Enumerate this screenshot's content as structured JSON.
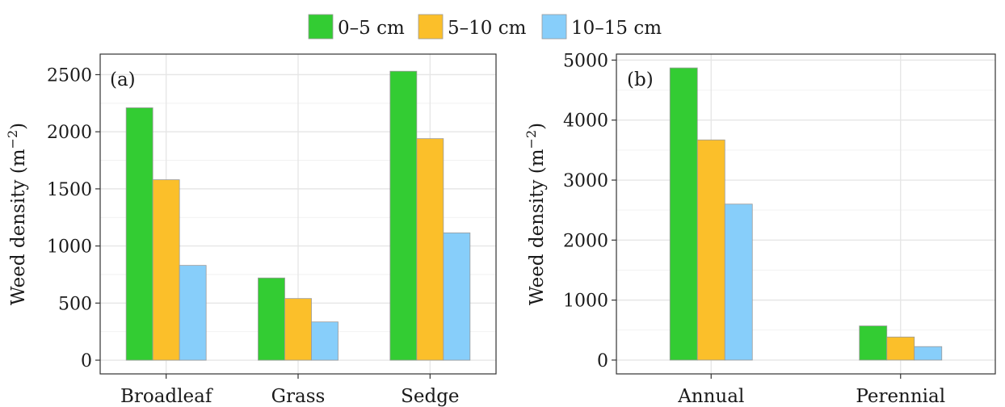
{
  "legend": [
    {
      "label": "0–5 cm",
      "color": "#33cc33"
    },
    {
      "label": "5–10 cm",
      "color": "#fbbf2a"
    },
    {
      "label": "10–15 cm",
      "color": "#87cefa"
    }
  ],
  "chart_data": [
    {
      "type": "bar",
      "panel_label": "(a)",
      "ylabel": "Weed density (m",
      "ylabel_sup": "−2",
      "ylabel_close": ")",
      "categories": [
        "Broadleaf",
        "Grass",
        "Sedge"
      ],
      "series": [
        {
          "name": "0–5 cm",
          "values": [
            2210,
            720,
            2530
          ]
        },
        {
          "name": "5–10 cm",
          "values": [
            1580,
            540,
            1940
          ]
        },
        {
          "name": "10–15 cm",
          "values": [
            830,
            335,
            1115
          ]
        }
      ],
      "ylim": [
        -120,
        2680
      ],
      "yticks": [
        0,
        500,
        1000,
        1500,
        2000,
        2500
      ],
      "grid": true
    },
    {
      "type": "bar",
      "panel_label": "(b)",
      "ylabel": "Weed density (m",
      "ylabel_sup": "−2",
      "ylabel_close": ")",
      "categories": [
        "Annual",
        "Perennial"
      ],
      "series": [
        {
          "name": "0–5 cm",
          "values": [
            4870,
            570
          ]
        },
        {
          "name": "5–10 cm",
          "values": [
            3670,
            385
          ]
        },
        {
          "name": "10–15 cm",
          "values": [
            2600,
            225
          ]
        }
      ],
      "ylim": [
        -230,
        5100
      ],
      "yticks": [
        0,
        1000,
        2000,
        3000,
        4000,
        5000
      ],
      "grid": true
    }
  ]
}
